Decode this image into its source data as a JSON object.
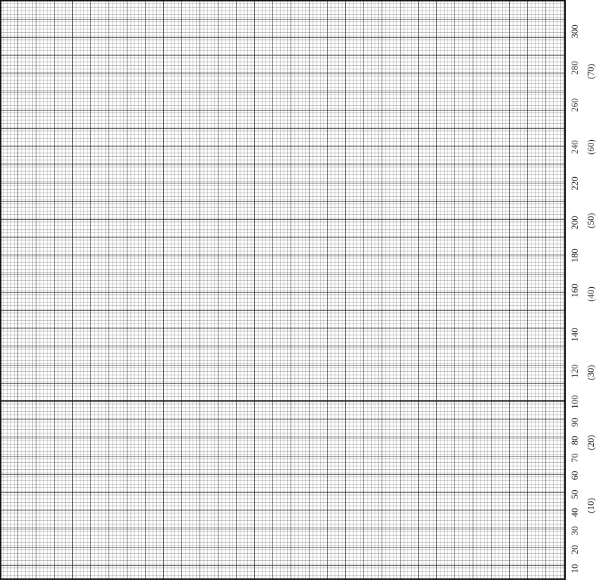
{
  "scale": {
    "labels": [
      "10",
      "20",
      "30",
      "40",
      "50",
      "60",
      "70",
      "80",
      "90",
      "100",
      "120",
      "140",
      "160",
      "180",
      "200",
      "220",
      "240",
      "260",
      "280",
      "300"
    ],
    "secondary_labels": [
      "(10)",
      "(20)",
      "(30)",
      "(40)",
      "(50)",
      "(60)",
      "(70)"
    ]
  }
}
